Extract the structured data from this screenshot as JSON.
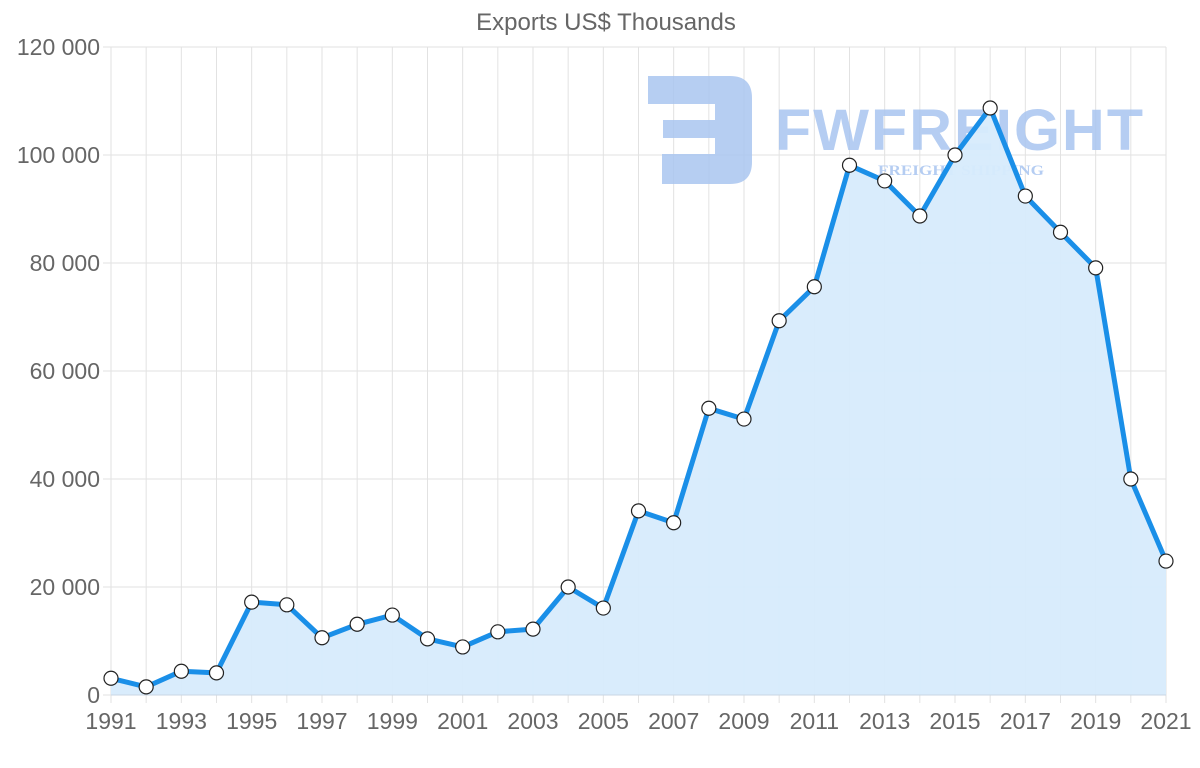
{
  "watermark": {
    "brand": "FWFREIGHT",
    "tagline": "FREIGHT SHIPPING",
    "color": "#a9c5f0"
  },
  "colors": {
    "line": "#1a8fe8",
    "fill": "#d7ebfc",
    "grid": "#e2e2e2",
    "axis_text": "#666666",
    "title_text": "#666666",
    "point_fill": "#ffffff",
    "point_stroke": "#222222"
  },
  "chart_data": {
    "type": "area",
    "title": "Exports US$ Thousands",
    "xlabel": "",
    "ylabel": "",
    "ylim": [
      0,
      120000
    ],
    "yticks": [
      0,
      20000,
      40000,
      60000,
      80000,
      100000,
      120000
    ],
    "ytick_labels": [
      "0",
      "20 000",
      "40 000",
      "60 000",
      "80 000",
      "100 000",
      "120 000"
    ],
    "xtick_labels": [
      "1991",
      "1993",
      "1995",
      "1997",
      "1999",
      "2001",
      "2003",
      "2005",
      "2007",
      "2009",
      "2011",
      "2013",
      "2015",
      "2017",
      "2019",
      "2021"
    ],
    "grid": true,
    "legend": null,
    "x": [
      1991,
      1992,
      1993,
      1994,
      1995,
      1996,
      1997,
      1998,
      1999,
      2000,
      2001,
      2002,
      2003,
      2004,
      2005,
      2006,
      2007,
      2008,
      2009,
      2010,
      2011,
      2012,
      2013,
      2014,
      2015,
      2016,
      2017,
      2018,
      2019,
      2020,
      2021
    ],
    "series": [
      {
        "name": "Exports US$ Thousands",
        "values": [
          3100,
          1500,
          4400,
          4100,
          17200,
          16700,
          10600,
          13100,
          14800,
          10400,
          8900,
          11700,
          12200,
          20000,
          16100,
          34100,
          31900,
          53100,
          51100,
          69300,
          75600,
          98100,
          95200,
          88700,
          100000,
          108700,
          92400,
          85700,
          79100,
          40000,
          24800
        ]
      }
    ]
  }
}
